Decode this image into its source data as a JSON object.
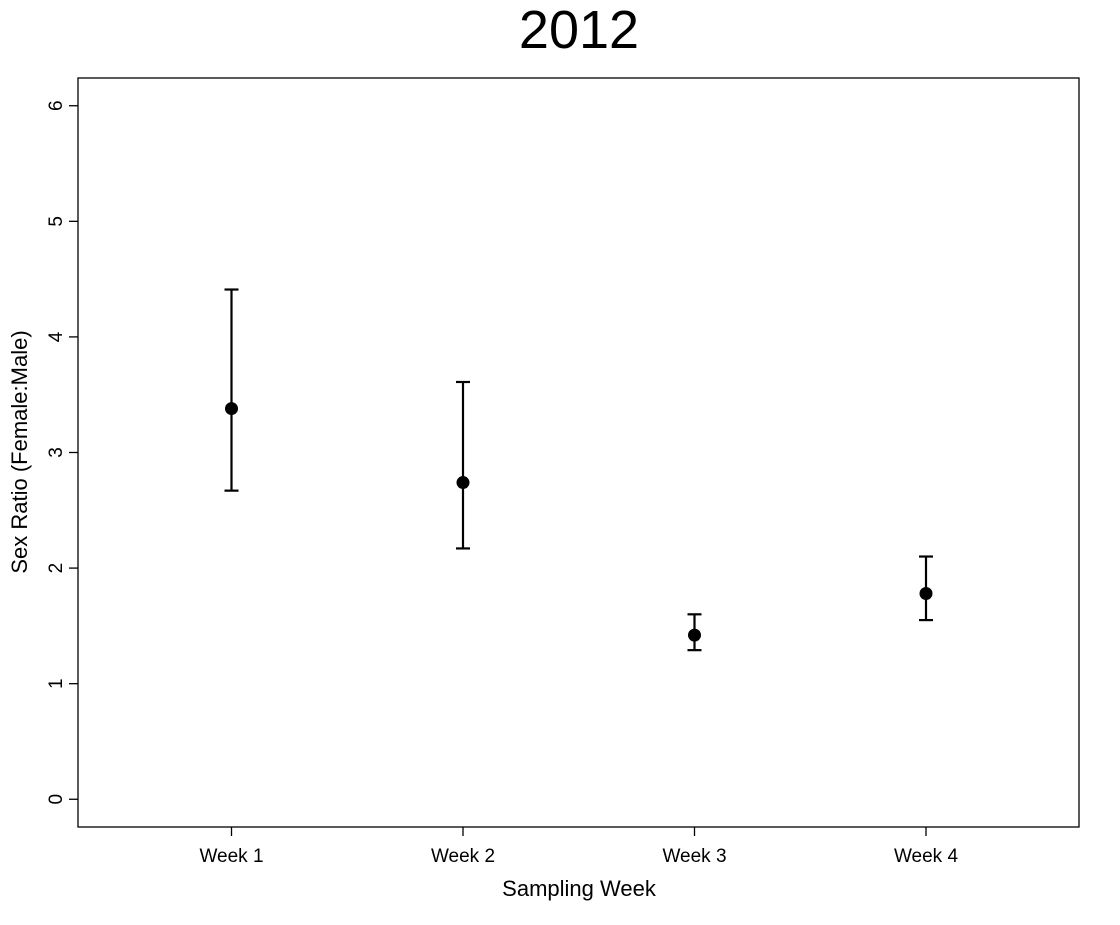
{
  "chart_data": {
    "type": "scatter",
    "title": "2012",
    "xlabel": "Sampling Week",
    "ylabel": "Sex Ratio (Female:Male)",
    "categories": [
      "Week 1",
      "Week 2",
      "Week 3",
      "Week 4"
    ],
    "values": [
      3.38,
      2.74,
      1.42,
      1.78
    ],
    "error_lower": [
      2.67,
      2.17,
      1.29,
      1.55
    ],
    "error_upper": [
      4.41,
      3.61,
      1.6,
      2.1
    ],
    "ylim": [
      -0.24,
      6.24
    ],
    "yticks": [
      "0",
      "1",
      "2",
      "3",
      "4",
      "5",
      "6"
    ],
    "grid": false,
    "legend": "none",
    "marker_color": "#000000"
  }
}
